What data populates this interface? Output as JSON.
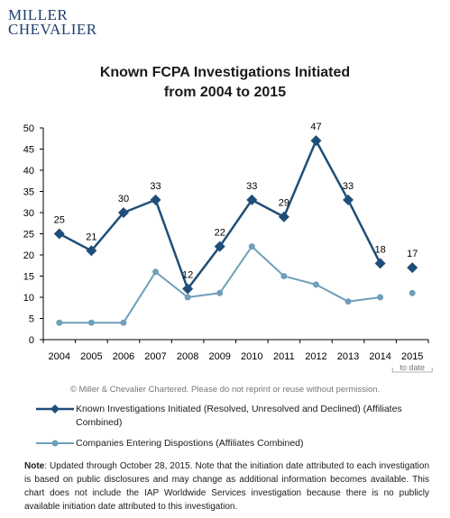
{
  "logo": {
    "line1": "MILLER",
    "line2": "CHEVALIER"
  },
  "colors": {
    "known": "#1f4e79",
    "companies": "#6f9fb9",
    "axis": "#000000",
    "copyright": "#777777"
  },
  "chart_data": {
    "type": "line",
    "title_line1": "Known FCPA Investigations Initiated",
    "title_line2": "from 2004 to 2015",
    "categories": [
      "2004",
      "2005",
      "2006",
      "2007",
      "2008",
      "2009",
      "2010",
      "2011",
      "2012",
      "2013",
      "2014",
      "2015"
    ],
    "x_sublabel_2015": "to date",
    "ylim": [
      0,
      50
    ],
    "yticks": [
      0,
      5,
      10,
      15,
      20,
      25,
      30,
      35,
      40,
      45,
      50
    ],
    "grid": false,
    "series": [
      {
        "name": "Known Investigations Initiated (Resolved, Unresolved and Declined) (Affiliates Combined)",
        "values": [
          25,
          21,
          30,
          33,
          12,
          22,
          33,
          29,
          47,
          33,
          18,
          17
        ],
        "labels": [
          "25",
          "21",
          "30",
          "33",
          "12",
          "22",
          "33",
          "29",
          "47",
          "33",
          "18",
          "17"
        ],
        "marker": "diamond",
        "connected_through_index": 10
      },
      {
        "name": "Companies Entering Dispostions (Affiliates Combined)",
        "values": [
          4,
          4,
          4,
          16,
          10,
          11,
          22,
          15,
          13,
          9,
          10,
          11
        ],
        "marker": "circle",
        "connected_through_index": 10
      }
    ]
  },
  "copyright": "© Miller & Chevalier Chartered. Please do not reprint or reuse without permission.",
  "legend": {
    "known": "Known Investigations Initiated (Resolved, Unresolved and Declined) (Affiliates Combined)",
    "companies": "Companies Entering Dispostions (Affiliates Combined)"
  },
  "note": {
    "label": "Note",
    "text": ": Updated through October 28, 2015. Note that the initiation date attributed to each investigation is based on public disclosures and may change as additional information becomes available.  This chart does not include the IAP Worldwide Services investigation because there is no publicly available initiation date attributed to this investigation."
  }
}
